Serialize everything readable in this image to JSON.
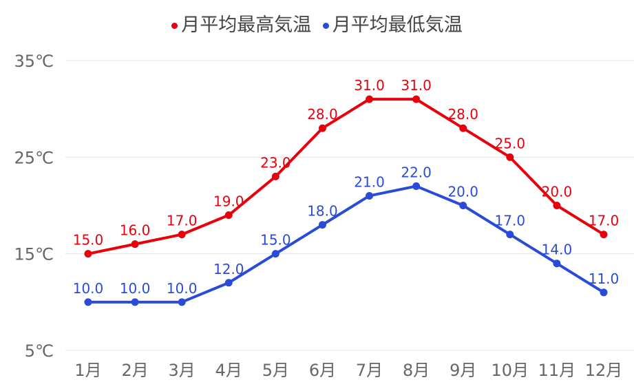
{
  "chart_data": {
    "type": "line",
    "title": "",
    "categories": [
      "1月",
      "2月",
      "3月",
      "4月",
      "5月",
      "6月",
      "7月",
      "8月",
      "9月",
      "10月",
      "11月",
      "12月"
    ],
    "series": [
      {
        "name": "月平均最高気温",
        "color": "#e8000b",
        "values": [
          15.0,
          16.0,
          17.0,
          19.0,
          23.0,
          28.0,
          31.0,
          31.0,
          28.0,
          25.0,
          20.0,
          17.0
        ]
      },
      {
        "name": "月平均最低気温",
        "color": "#2a4bd7",
        "values": [
          10.0,
          10.0,
          10.0,
          12.0,
          15.0,
          18.0,
          21.0,
          22.0,
          20.0,
          17.0,
          14.0,
          11.0
        ]
      }
    ],
    "yticks": [
      "5℃",
      "15℃",
      "25℃",
      "35℃"
    ],
    "ytick_values": [
      5,
      15,
      25,
      35
    ],
    "ylim": [
      5,
      35
    ],
    "xlabel": "",
    "ylabel": "",
    "grid": true,
    "legend_position": "top-center"
  }
}
